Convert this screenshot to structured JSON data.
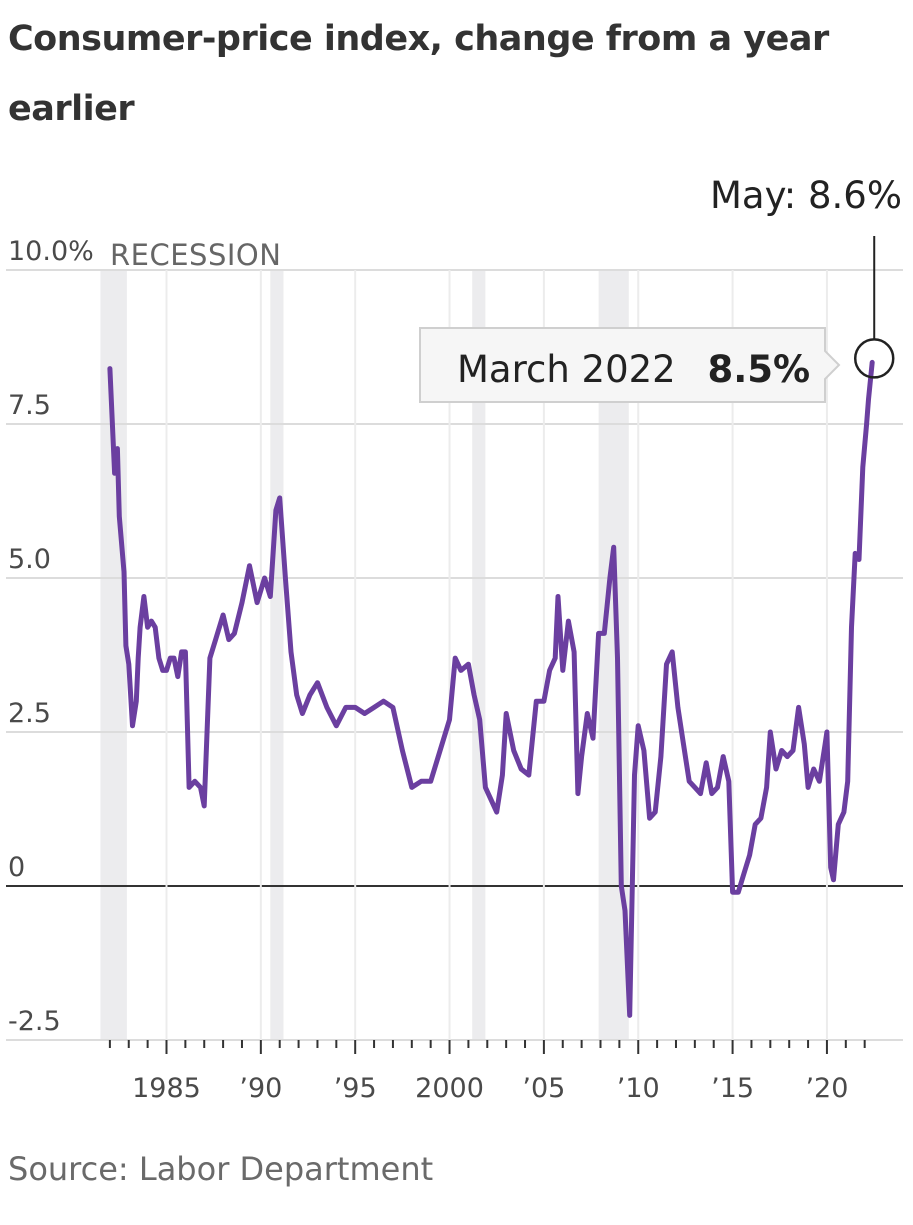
{
  "title": "Consumer-price index, change from a year earlier",
  "source": "Source: Labor Department",
  "colors": {
    "line": "#6b3fa0",
    "recession": "#ececee",
    "grid": "#dcdcdc",
    "zero": "#333333"
  },
  "chart_data": {
    "type": "line",
    "title": "Consumer-price index, change from a year earlier",
    "ylim": [
      -2.5,
      10
    ],
    "y_ticks": [
      {
        "value": 10,
        "label": "10.0%"
      },
      {
        "value": 7.5,
        "label": "7.5"
      },
      {
        "value": 5,
        "label": "5.0"
      },
      {
        "value": 2.5,
        "label": "2.5"
      },
      {
        "value": 0,
        "label": "0"
      },
      {
        "value": -2.5,
        "label": "-2.5"
      }
    ],
    "x_ticks": [
      {
        "value": 1985,
        "label": "1985"
      },
      {
        "value": 1990,
        "label": "’90"
      },
      {
        "value": 1995,
        "label": "’95"
      },
      {
        "value": 2000,
        "label": "2000"
      },
      {
        "value": 2005,
        "label": "’05"
      },
      {
        "value": 2010,
        "label": "’10"
      },
      {
        "value": 2015,
        "label": "’15"
      },
      {
        "value": 2020,
        "label": "’20"
      }
    ],
    "xlim": [
      1981.9,
      2022.6
    ],
    "grid": true,
    "recession_label": "RECESSION",
    "recessions": [
      [
        1981.5,
        1982.9
      ],
      [
        1990.5,
        1991.2
      ],
      [
        2001.2,
        2001.9
      ],
      [
        2007.9,
        2009.5
      ]
    ],
    "series": [
      {
        "x": [
          1982.0,
          1982.25,
          1982.4,
          1982.5,
          1982.75,
          1982.85,
          1983.0,
          1983.2,
          1983.4,
          1983.5,
          1983.6,
          1983.8,
          1984.0,
          1984.2,
          1984.4,
          1984.6,
          1984.8,
          1985.0,
          1985.2,
          1985.4,
          1985.6,
          1985.8,
          1986.0,
          1986.2,
          1986.5,
          1986.8,
          1987.0,
          1987.3,
          1987.6,
          1988.0,
          1988.3,
          1988.6,
          1989.0,
          1989.4,
          1989.8,
          1990.2,
          1990.5,
          1990.8,
          1991.0,
          1991.3,
          1991.6,
          1991.9,
          1992.2,
          1992.6,
          1993.0,
          1993.5,
          1994.0,
          1994.5,
          1995.0,
          1995.5,
          1996.0,
          1996.5,
          1997.0,
          1997.5,
          1998.0,
          1998.5,
          1999.0,
          1999.5,
          2000.0,
          2000.3,
          2000.6,
          2001.0,
          2001.3,
          2001.6,
          2001.9,
          2002.2,
          2002.5,
          2002.8,
          2003.0,
          2003.4,
          2003.8,
          2004.2,
          2004.6,
          2005.0,
          2005.3,
          2005.6,
          2005.75,
          2006.0,
          2006.3,
          2006.6,
          2006.8,
          2007.0,
          2007.3,
          2007.6,
          2007.9,
          2008.2,
          2008.5,
          2008.7,
          2008.9,
          2009.1,
          2009.3,
          2009.55,
          2009.8,
          2010.0,
          2010.3,
          2010.6,
          2010.9,
          2011.2,
          2011.5,
          2011.8,
          2012.1,
          2012.4,
          2012.7,
          2013.0,
          2013.3,
          2013.6,
          2013.9,
          2014.2,
          2014.5,
          2014.8,
          2015.0,
          2015.3,
          2015.6,
          2015.9,
          2016.2,
          2016.5,
          2016.8,
          2017.0,
          2017.3,
          2017.6,
          2017.9,
          2018.2,
          2018.5,
          2018.8,
          2019.0,
          2019.3,
          2019.6,
          2019.9,
          2020.0,
          2020.2,
          2020.35,
          2020.6,
          2020.9,
          2021.1,
          2021.3,
          2021.5,
          2021.7,
          2021.9,
          2022.1,
          2022.2,
          2022.4
        ],
        "y": [
          8.4,
          6.7,
          7.1,
          6.0,
          5.1,
          3.9,
          3.6,
          2.6,
          3.0,
          3.7,
          4.2,
          4.7,
          4.2,
          4.3,
          4.2,
          3.7,
          3.5,
          3.5,
          3.7,
          3.7,
          3.4,
          3.8,
          3.8,
          1.6,
          1.7,
          1.6,
          1.3,
          3.7,
          4.0,
          4.4,
          4.0,
          4.1,
          4.6,
          5.2,
          4.6,
          5.0,
          4.7,
          6.1,
          6.3,
          5.0,
          3.8,
          3.1,
          2.8,
          3.1,
          3.3,
          2.9,
          2.6,
          2.9,
          2.9,
          2.8,
          2.9,
          3.0,
          2.9,
          2.2,
          1.6,
          1.7,
          1.7,
          2.2,
          2.7,
          3.7,
          3.5,
          3.6,
          3.1,
          2.7,
          1.6,
          1.4,
          1.2,
          1.8,
          2.8,
          2.2,
          1.9,
          1.8,
          3.0,
          3.0,
          3.5,
          3.7,
          4.7,
          3.5,
          4.3,
          3.8,
          1.5,
          2.1,
          2.8,
          2.4,
          4.1,
          4.1,
          5.0,
          5.5,
          3.7,
          0.0,
          -0.4,
          -2.1,
          1.8,
          2.6,
          2.2,
          1.1,
          1.2,
          2.1,
          3.6,
          3.8,
          2.9,
          2.3,
          1.7,
          1.6,
          1.5,
          2.0,
          1.5,
          1.6,
          2.1,
          1.7,
          -0.1,
          -0.1,
          0.2,
          0.5,
          1.0,
          1.1,
          1.6,
          2.5,
          1.9,
          2.2,
          2.1,
          2.2,
          2.9,
          2.3,
          1.6,
          1.9,
          1.7,
          2.3,
          2.5,
          0.3,
          0.1,
          1.0,
          1.2,
          1.7,
          4.2,
          5.4,
          5.3,
          6.8,
          7.5,
          7.9,
          8.5
        ]
      }
    ],
    "annotations": [
      {
        "label": "March 2022",
        "value": "8.5%"
      },
      {
        "label": "May: 8.6%"
      }
    ]
  }
}
